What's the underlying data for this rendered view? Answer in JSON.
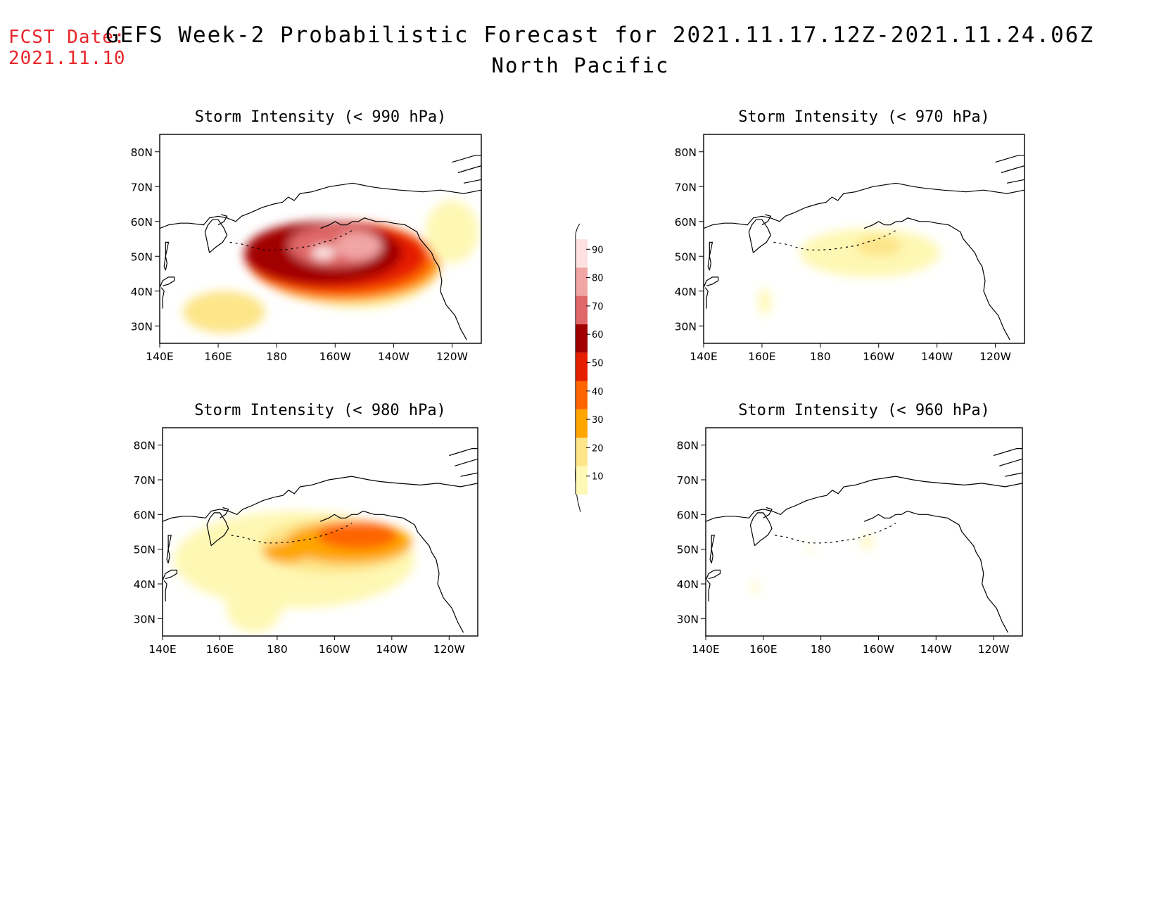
{
  "forecast_date": {
    "label": "FCST Date:",
    "value": "2021.11.10"
  },
  "title": {
    "line1": "GEFS Week-2 Probabilistic Forecast for 2021.11.17.12Z-2021.11.24.06Z",
    "line2": "North Pacific"
  },
  "axes": {
    "lat_labels": [
      "80N",
      "70N",
      "60N",
      "50N",
      "40N",
      "30N"
    ],
    "lon_labels": [
      "140E",
      "160E",
      "180",
      "160W",
      "140W",
      "120W"
    ]
  },
  "colorbar": {
    "levels": [
      "10",
      "20",
      "30",
      "40",
      "50",
      "60",
      "70",
      "80",
      "90"
    ],
    "colors": [
      "#fef8b4",
      "#fde589",
      "#fea500",
      "#fe6500",
      "#e61f00",
      "#a10000",
      "#e06767",
      "#f1a5a5",
      "#fde1e1"
    ]
  },
  "chart_data": [
    {
      "type": "heatmap",
      "title": "Storm Intensity (< 990 hPa)",
      "xlim": [
        140,
        250
      ],
      "ylim": [
        25,
        85
      ],
      "blobs": [
        {
          "lon": 208,
          "lat": 45,
          "w": 25,
          "h": 10,
          "c": 1
        },
        {
          "lon": 205,
          "lat": 47,
          "w": 31,
          "h": 11,
          "c": 2
        },
        {
          "lon": 204,
          "lat": 48,
          "w": 32,
          "h": 11,
          "c": 3
        },
        {
          "lon": 202,
          "lat": 49,
          "w": 32,
          "h": 11,
          "c": 4
        },
        {
          "lon": 200,
          "lat": 50,
          "w": 31,
          "h": 10,
          "c": 5
        },
        {
          "lon": 196,
          "lat": 51,
          "w": 27,
          "h": 9,
          "c": 6
        },
        {
          "lon": 200,
          "lat": 53,
          "w": 16,
          "h": 6,
          "c": 7
        },
        {
          "lon": 208,
          "lat": 53,
          "w": 8,
          "h": 4,
          "c": 8
        },
        {
          "lon": 196,
          "lat": 51,
          "w": 4,
          "h": 2,
          "c": 9
        },
        {
          "lon": 162,
          "lat": 34,
          "w": 14,
          "h": 6,
          "c": 2
        },
        {
          "lon": 240,
          "lat": 57,
          "w": 9,
          "h": 9,
          "c": 1
        }
      ]
    },
    {
      "type": "heatmap",
      "title": "Storm Intensity (< 980 hPa)",
      "xlim": [
        140,
        250
      ],
      "ylim": [
        25,
        85
      ],
      "blobs": [
        {
          "lon": 186,
          "lat": 47,
          "w": 42,
          "h": 14,
          "c": 1
        },
        {
          "lon": 172,
          "lat": 34,
          "w": 10,
          "h": 8,
          "c": 1
        },
        {
          "lon": 200,
          "lat": 51,
          "w": 26,
          "h": 8,
          "c": 2
        },
        {
          "lon": 205,
          "lat": 52,
          "w": 22,
          "h": 6,
          "c": 3
        },
        {
          "lon": 208,
          "lat": 54,
          "w": 14,
          "h": 4,
          "c": 4
        },
        {
          "lon": 183,
          "lat": 49,
          "w": 8,
          "h": 3,
          "c": 3
        }
      ]
    },
    {
      "type": "heatmap",
      "title": "Storm Intensity (< 970 hPa)",
      "xlim": [
        140,
        250
      ],
      "ylim": [
        25,
        85
      ],
      "blobs": [
        {
          "lon": 197,
          "lat": 51,
          "w": 24,
          "h": 7,
          "c": 1
        },
        {
          "lon": 200,
          "lat": 53,
          "w": 8,
          "h": 3,
          "c": 2
        },
        {
          "lon": 161,
          "lat": 37,
          "w": 2,
          "h": 4,
          "c": 1
        }
      ]
    },
    {
      "type": "heatmap",
      "title": "Storm Intensity (< 960 hPa)",
      "xlim": [
        140,
        250
      ],
      "ylim": [
        25,
        85
      ],
      "blobs": [
        {
          "lon": 196,
          "lat": 52,
          "w": 2,
          "h": 2,
          "c": 1
        },
        {
          "lon": 157,
          "lat": 39,
          "w": 1,
          "h": 2,
          "c": 1
        },
        {
          "lon": 176,
          "lat": 50,
          "w": 1,
          "h": 1,
          "c": 1
        }
      ]
    }
  ]
}
